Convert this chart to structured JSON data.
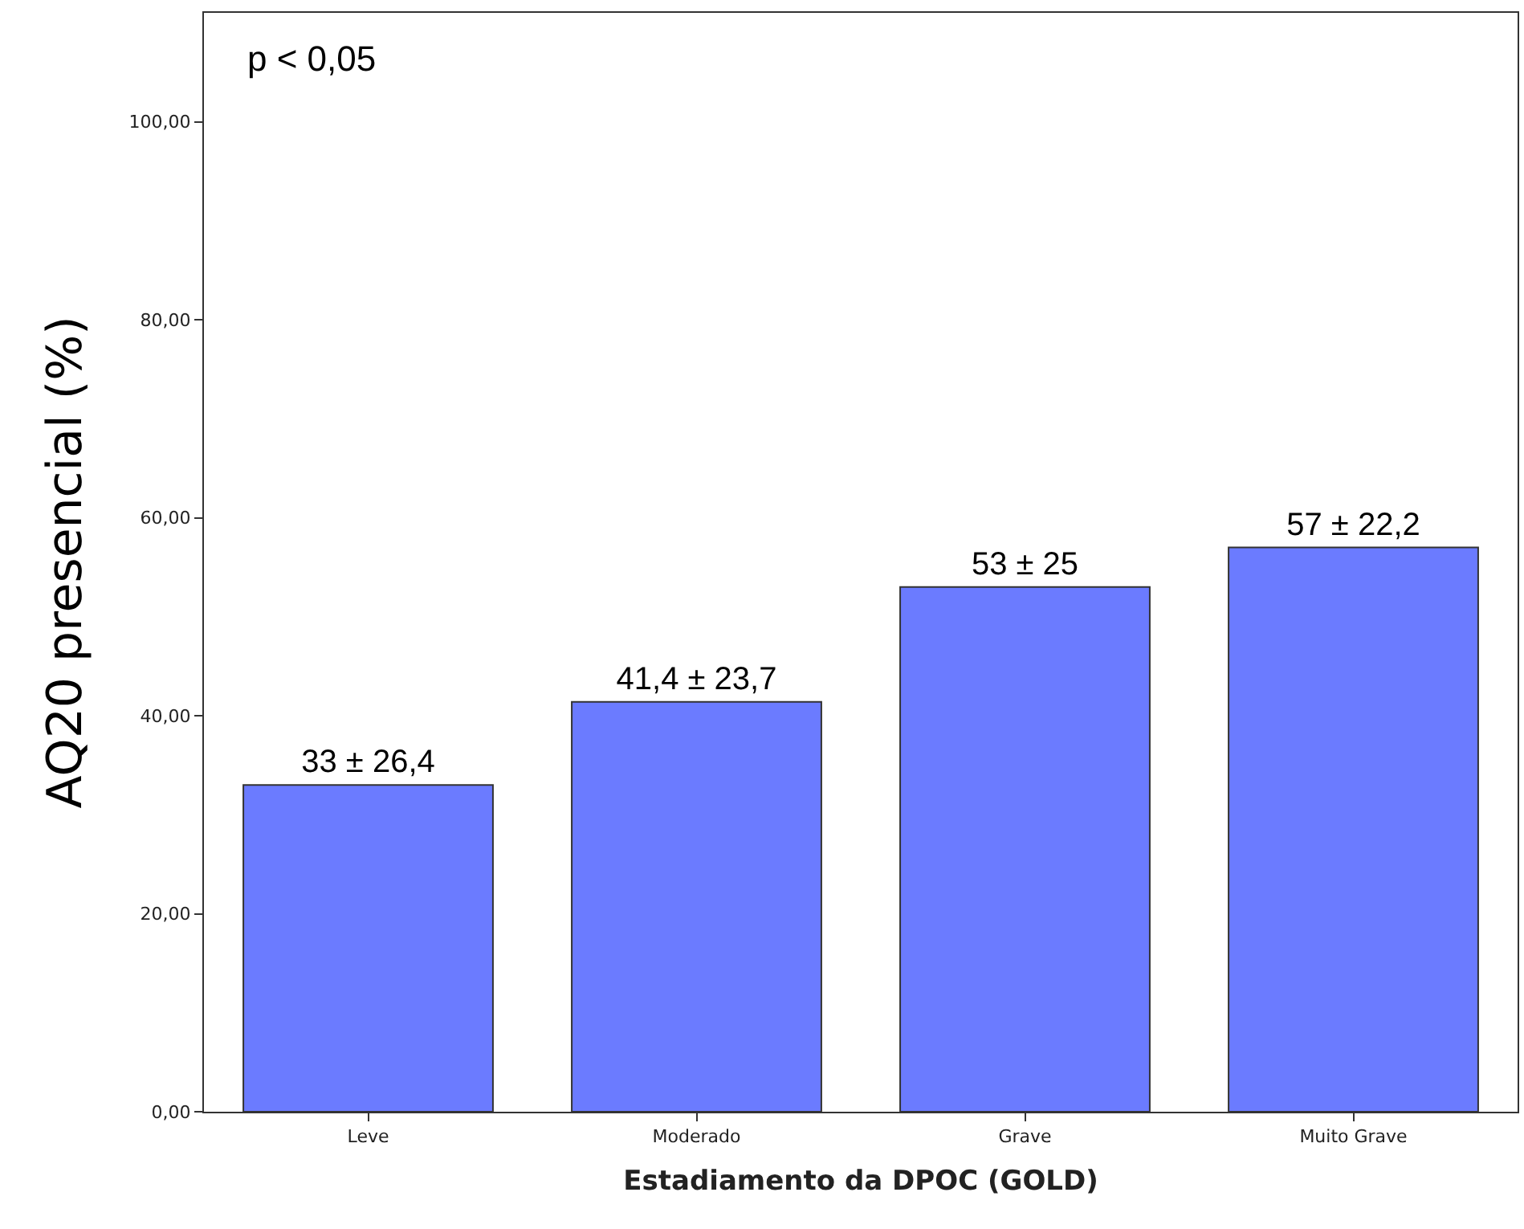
{
  "chart_data": {
    "type": "bar",
    "xlabel": "Estadiamento da DPOC (GOLD)",
    "ylabel": "AQ20 presencial (%)",
    "annotations": [
      "p < 0,05"
    ],
    "categories": [
      "Leve",
      "Moderado",
      "Grave",
      "Muito Grave"
    ],
    "values": [
      33,
      41.4,
      53,
      57
    ],
    "value_labels": [
      "33 ± 26,4",
      "41,4 ± 23,7",
      "53 ± 25",
      "57 ± 22,2"
    ],
    "color": "#6b7bff",
    "ylim": [
      0,
      111
    ],
    "yticks": [
      {
        "value": 0,
        "label": "0,00"
      },
      {
        "value": 20,
        "label": "20,00"
      },
      {
        "value": 40,
        "label": "40,00"
      },
      {
        "value": 60,
        "label": "60,00"
      },
      {
        "value": 80,
        "label": "80,00"
      },
      {
        "value": 100,
        "label": "100,00"
      }
    ]
  }
}
